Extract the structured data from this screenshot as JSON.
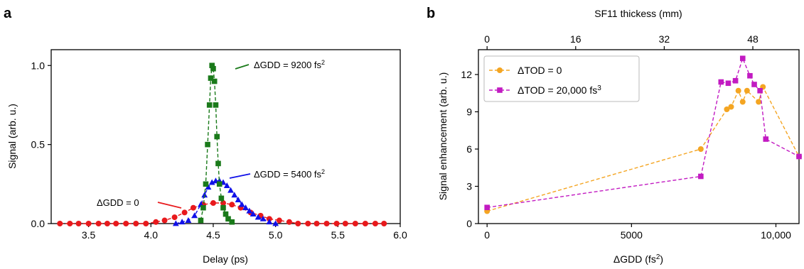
{
  "chart_data": [
    {
      "panel": "a",
      "type": "line",
      "xlabel": "Delay (ps)",
      "ylabel": "Signal (arb. u.)",
      "xlim": [
        3.2,
        6.0
      ],
      "ylim": [
        0,
        1.1
      ],
      "xticks": [
        3.5,
        4.0,
        4.5,
        5.0,
        5.5,
        6.0
      ],
      "xtick_labels": [
        "3.5",
        "4.0",
        "4.5",
        "5.0",
        "5.5",
        "6.0"
      ],
      "yticks": [
        0.0,
        0.5,
        1.0
      ],
      "ytick_labels": [
        "0.0",
        "0.5",
        "1.0"
      ],
      "grid": false,
      "series": [
        {
          "color": "#e8191c",
          "marker": "circle",
          "linestyle": "dashed",
          "annotation": {
            "prefix": "ΔGDD = 0",
            "sup": ""
          },
          "x": [
            3.27,
            3.35,
            3.42,
            3.5,
            3.58,
            3.65,
            3.72,
            3.8,
            3.88,
            3.96,
            4.04,
            4.11,
            4.19,
            4.27,
            4.34,
            4.42,
            4.5,
            4.58,
            4.65,
            4.72,
            4.8,
            4.88,
            4.95,
            5.03,
            5.11,
            5.18,
            5.26,
            5.33,
            5.41,
            5.49,
            5.56,
            5.64,
            5.72,
            5.8,
            5.87
          ],
          "y": [
            0.0,
            0.0,
            0.0,
            0.0,
            0.0,
            0.0,
            0.0,
            0.0,
            0.0,
            0.0,
            0.01,
            0.02,
            0.04,
            0.07,
            0.1,
            0.12,
            0.13,
            0.13,
            0.12,
            0.1,
            0.07,
            0.05,
            0.03,
            0.02,
            0.01,
            0.0,
            0.0,
            0.0,
            0.0,
            0.0,
            0.0,
            0.0,
            0.0,
            0.0,
            0.0
          ]
        },
        {
          "color": "#1010e8",
          "marker": "triangle",
          "linestyle": "dashed",
          "annotation": {
            "prefix": "ΔGDD = 5400 fs",
            "sup": "2"
          },
          "x": [
            4.2,
            4.25,
            4.3,
            4.35,
            4.4,
            4.43,
            4.46,
            4.49,
            4.52,
            4.55,
            4.58,
            4.61,
            4.64,
            4.67,
            4.7,
            4.73,
            4.76,
            4.79,
            4.82,
            4.86,
            4.9,
            4.95,
            5.0
          ],
          "y": [
            0.0,
            0.01,
            0.02,
            0.05,
            0.12,
            0.18,
            0.23,
            0.26,
            0.27,
            0.27,
            0.26,
            0.24,
            0.21,
            0.18,
            0.15,
            0.12,
            0.1,
            0.08,
            0.06,
            0.04,
            0.03,
            0.01,
            0.0
          ]
        },
        {
          "color": "#1a7a1a",
          "marker": "square",
          "linestyle": "dashed",
          "annotation": {
            "prefix": "ΔGDD = 9200 fs",
            "sup": "2"
          },
          "x": [
            4.4,
            4.42,
            4.44,
            4.455,
            4.47,
            4.48,
            4.49,
            4.5,
            4.51,
            4.52,
            4.53,
            4.54,
            4.55,
            4.565,
            4.58,
            4.6,
            4.62,
            4.65
          ],
          "y": [
            0.02,
            0.1,
            0.25,
            0.5,
            0.75,
            0.92,
            1.0,
            0.98,
            0.9,
            0.75,
            0.55,
            0.38,
            0.25,
            0.16,
            0.1,
            0.06,
            0.03,
            0.01
          ]
        }
      ]
    },
    {
      "panel": "b",
      "type": "line",
      "xlabel": "ΔGDD (fs",
      "xlabel_sup": "2",
      "xlabel_suffix": ")",
      "ylabel": "Signal enhancement (arb. u.)",
      "top_xlabel": "SF11 thickess (mm)",
      "xlim": [
        -300,
        10800
      ],
      "ylim": [
        0,
        14
      ],
      "xticks": [
        0,
        5000,
        10000
      ],
      "xtick_labels": [
        "0",
        "5000",
        "10,000"
      ],
      "top_xticks": [
        0,
        16,
        32,
        48
      ],
      "top_xtick_labels": [
        "0",
        "16",
        "32",
        "48"
      ],
      "top_mm_per_fs2": 0.005217,
      "yticks": [
        0,
        3,
        6,
        9,
        12
      ],
      "ytick_labels": [
        "0",
        "3",
        "6",
        "9",
        "12"
      ],
      "grid": false,
      "legend": "top-left",
      "series": [
        {
          "name": "ΔTOD = 0",
          "name_sup": "",
          "color": "#f4a522",
          "marker": "circle",
          "linestyle": "dashed",
          "x": [
            0,
            7400,
            8300,
            8450,
            8700,
            8850,
            9000,
            9400,
            9550,
            10800
          ],
          "y": [
            1.0,
            6.0,
            9.2,
            9.4,
            10.7,
            9.8,
            10.7,
            9.8,
            11.0,
            5.4
          ]
        },
        {
          "name": "ΔTOD = 20,000 fs",
          "name_sup": "3",
          "color": "#c21bc2",
          "marker": "square",
          "linestyle": "dashed",
          "x": [
            0,
            7400,
            8100,
            8350,
            8600,
            8850,
            9100,
            9250,
            9450,
            9650,
            10800
          ],
          "y": [
            1.3,
            3.8,
            11.4,
            11.3,
            11.5,
            13.3,
            11.9,
            11.2,
            10.7,
            6.8,
            5.4
          ]
        }
      ]
    }
  ],
  "panel_labels": {
    "a": "a",
    "b": "b"
  }
}
